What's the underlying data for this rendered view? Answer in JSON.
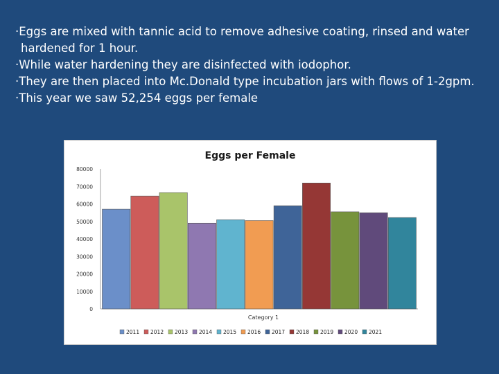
{
  "slide": {
    "bullets": [
      "·Eggs are mixed with tannic acid to remove adhesive coating, rinsed and water",
      " hardened for 1 hour.",
      "·While water hardening they are disinfected with iodophor.",
      "·They are then placed into Mc.Donald type incubation jars with flows of 1-2gpm.",
      "·This year we saw 52,254 eggs per female"
    ]
  },
  "colors": {
    "background": "#1f4a7c",
    "series": [
      "#6b8fc9",
      "#cd5c5a",
      "#a9c46a",
      "#8f78b1",
      "#60b4cf",
      "#f19c52",
      "#3f6498",
      "#953735",
      "#77933c",
      "#604a7b",
      "#31859c"
    ]
  },
  "chart_data": {
    "type": "bar",
    "title": "Eggs per Female",
    "categories": [
      "Category 1"
    ],
    "xlabel": "",
    "ylabel": "",
    "ylim": [
      0,
      80000
    ],
    "yticks": [
      0,
      10000,
      20000,
      30000,
      40000,
      50000,
      60000,
      70000,
      80000
    ],
    "grid": false,
    "legend_position": "bottom",
    "series": [
      {
        "name": "2011",
        "values": [
          57000
        ]
      },
      {
        "name": "2012",
        "values": [
          64500
        ]
      },
      {
        "name": "2013",
        "values": [
          66500
        ]
      },
      {
        "name": "2014",
        "values": [
          49000
        ]
      },
      {
        "name": "2015",
        "values": [
          51000
        ]
      },
      {
        "name": "2016",
        "values": [
          50500
        ]
      },
      {
        "name": "2017",
        "values": [
          59000
        ]
      },
      {
        "name": "2018",
        "values": [
          72000
        ]
      },
      {
        "name": "2019",
        "values": [
          55500
        ]
      },
      {
        "name": "2020",
        "values": [
          55000
        ]
      },
      {
        "name": "2021",
        "values": [
          52254
        ]
      }
    ]
  }
}
